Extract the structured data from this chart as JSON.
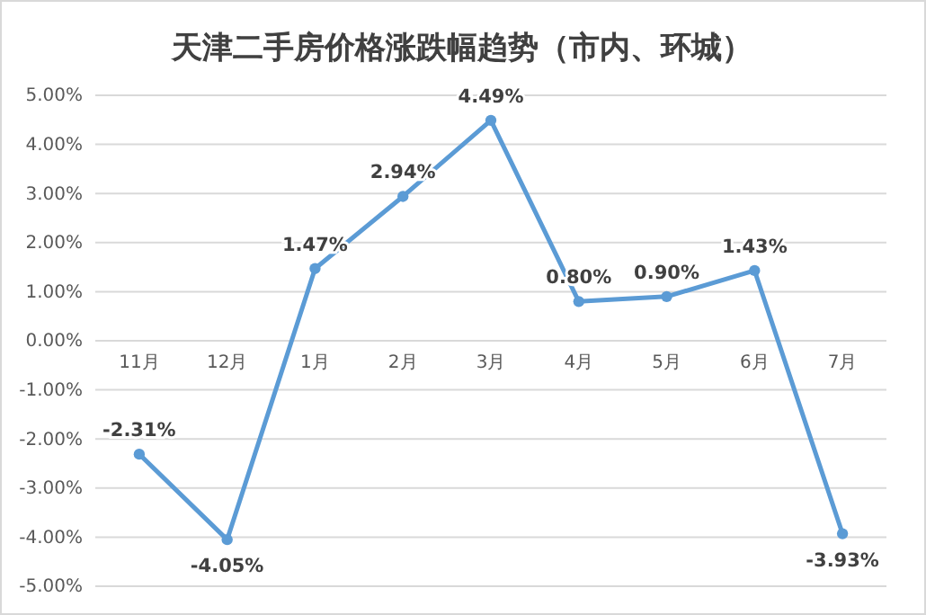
{
  "chart_data": {
    "type": "line",
    "title": "天津二手房价格涨跌幅趋势（市内、环城）",
    "categories": [
      "11月",
      "12月",
      "1月",
      "2月",
      "3月",
      "4月",
      "5月",
      "6月",
      "7月"
    ],
    "series": [
      {
        "color": "#5b9bd5",
        "values": [
          -2.31,
          -4.05,
          1.47,
          2.94,
          4.49,
          0.8,
          0.9,
          1.43,
          -3.93
        ],
        "value_labels": [
          "-2.31%",
          "-4.05%",
          "1.47%",
          "2.94%",
          "4.49%",
          "0.80%",
          "0.90%",
          "1.43%",
          "-3.93%"
        ]
      }
    ],
    "ylim": [
      -5,
      5
    ],
    "yticks": [
      {
        "value": -5,
        "label": "-5.00%"
      },
      {
        "value": -4,
        "label": "-4.00%"
      },
      {
        "value": -3,
        "label": "-3.00%"
      },
      {
        "value": -2,
        "label": "-2.00%"
      },
      {
        "value": -1,
        "label": "-1.00%"
      },
      {
        "value": 0,
        "label": "0.00%"
      },
      {
        "value": 1,
        "label": "1.00%"
      },
      {
        "value": 2,
        "label": "2.00%"
      },
      {
        "value": 3,
        "label": "3.00%"
      },
      {
        "value": 4,
        "label": "4.00%"
      },
      {
        "value": 5,
        "label": "5.00%"
      }
    ],
    "grid": "y",
    "marker": "circle",
    "line_style": "solid"
  }
}
